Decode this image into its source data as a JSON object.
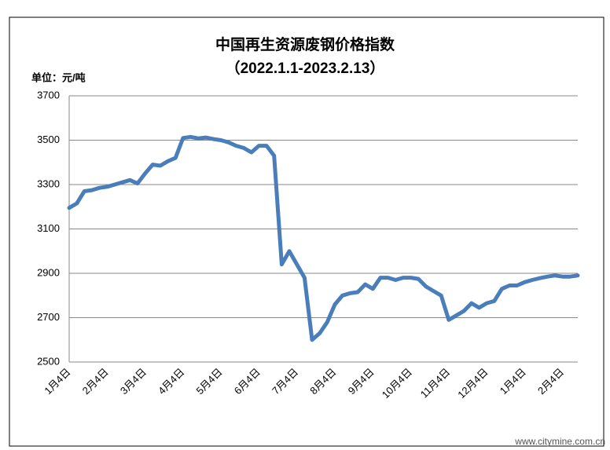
{
  "chart_data": {
    "type": "line",
    "title": "中国再生资源废钢价格指数",
    "subtitle": "（2022.1.1-2023.2.13）",
    "y_label": "单位：元/吨",
    "watermark": "www.citymine.com.cn",
    "categories": [
      "1月4日",
      null,
      null,
      null,
      null,
      "2月4日",
      null,
      null,
      null,
      null,
      "3月4日",
      null,
      null,
      null,
      null,
      "4月4日",
      null,
      null,
      null,
      null,
      "5月4日",
      null,
      null,
      null,
      null,
      "6月4日",
      null,
      null,
      null,
      null,
      "7月4日",
      null,
      null,
      null,
      null,
      "8月4日",
      null,
      null,
      null,
      null,
      "9月4日",
      null,
      null,
      null,
      null,
      "10月4日",
      null,
      null,
      null,
      null,
      "11月4日",
      null,
      null,
      null,
      null,
      "12月4日",
      null,
      null,
      null,
      null,
      "1月4日",
      null,
      null,
      null,
      null,
      "2月4日",
      null,
      null
    ],
    "series": [
      {
        "color": "#4a7ebb",
        "values": [
          3195,
          3215,
          3270,
          3275,
          3285,
          3290,
          3300,
          3310,
          3320,
          3305,
          3350,
          3390,
          3385,
          3405,
          3420,
          3510,
          3515,
          3508,
          3512,
          3505,
          3500,
          3490,
          3475,
          3465,
          3445,
          3475,
          3475,
          3430,
          2940,
          3000,
          2940,
          2880,
          2600,
          2630,
          2680,
          2760,
          2800,
          2810,
          2815,
          2850,
          2830,
          2880,
          2880,
          2870,
          2880,
          2880,
          2875,
          2840,
          2820,
          2800,
          2690,
          2710,
          2730,
          2765,
          2745,
          2765,
          2775,
          2830,
          2845,
          2845,
          2860,
          2870,
          2878,
          2885,
          2890,
          2885,
          2885,
          2890
        ]
      }
    ],
    "ylim": [
      2500,
      3700
    ],
    "yticks": [
      2500,
      2700,
      2900,
      3100,
      3300,
      3500,
      3700
    ],
    "grid": true
  }
}
